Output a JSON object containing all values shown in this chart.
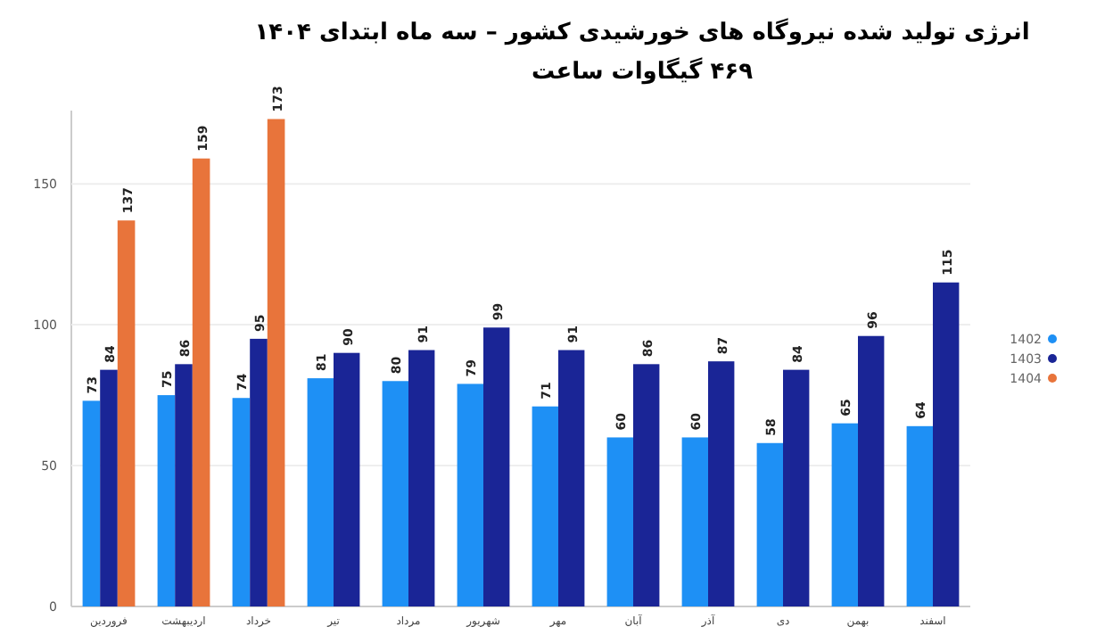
{
  "chart_data": {
    "type": "bar",
    "title": "انرژی تولید شده نیروگاه های خورشیدی کشور – سه ماه ابتدای ۱۴۰۴",
    "subtitle": "۴۶۹ گیگاوات ساعت",
    "categories": [
      "فروردین",
      "اردیبهشت",
      "خرداد",
      "تیر",
      "مرداد",
      "شهریور",
      "مهر",
      "آبان",
      "آذر",
      "دی",
      "بهمن",
      "اسفند"
    ],
    "series": [
      {
        "name": "1402",
        "color": "#1e90f5",
        "values": [
          73,
          75,
          74,
          81,
          80,
          79,
          71,
          60,
          60,
          58,
          65,
          64
        ]
      },
      {
        "name": "1403",
        "color": "#1a2596",
        "values": [
          84,
          86,
          95,
          90,
          91,
          99,
          91,
          86,
          87,
          84,
          96,
          115
        ]
      },
      {
        "name": "1404",
        "color": "#e8743b",
        "values": [
          137,
          159,
          173,
          null,
          null,
          null,
          null,
          null,
          null,
          null,
          null,
          null
        ]
      }
    ],
    "ylim": [
      0,
      176
    ],
    "yticks": [
      0,
      50,
      100,
      150
    ],
    "grid": "y",
    "legend": "right",
    "data_labels": true
  }
}
